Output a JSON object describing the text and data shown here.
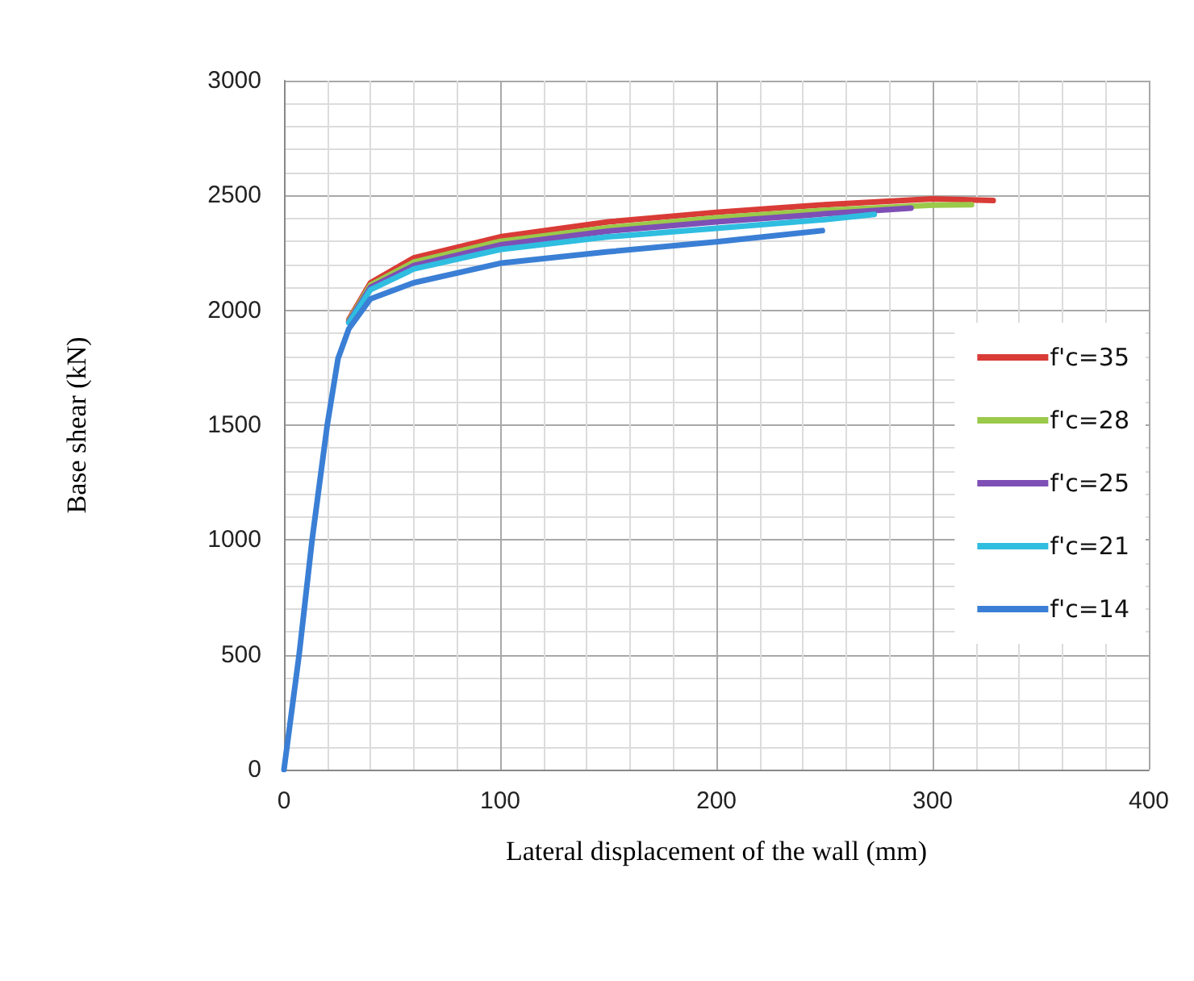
{
  "chart_data": {
    "type": "line",
    "xlabel": "Lateral displacement of the wall (mm)",
    "ylabel": "Base shear (kN)",
    "xlim": [
      0,
      400
    ],
    "ylim": [
      0,
      3000
    ],
    "xticks": [
      0,
      {
        "value": 20,
        "label": null
      },
      {
        "value": 40,
        "label": null
      },
      {
        "value": 60,
        "label": null
      },
      {
        "value": 80,
        "label": null
      },
      100,
      {
        "value": 120,
        "label": null
      },
      {
        "value": 140,
        "label": null
      },
      {
        "value": 160,
        "label": null
      },
      {
        "value": 180,
        "label": null
      },
      200,
      {
        "value": 220,
        "label": null
      },
      {
        "value": 240,
        "label": null
      },
      {
        "value": 260,
        "label": null
      },
      {
        "value": 280,
        "label": null
      },
      300,
      {
        "value": 320,
        "label": null
      },
      {
        "value": 340,
        "label": null
      },
      {
        "value": 360,
        "label": null
      },
      {
        "value": 380,
        "label": null
      },
      400
    ],
    "yticks": [
      0,
      {
        "value": 100,
        "label": null
      },
      {
        "value": 200,
        "label": null
      },
      {
        "value": 300,
        "label": null
      },
      {
        "value": 400,
        "label": null
      },
      500,
      {
        "value": 600,
        "label": null
      },
      {
        "value": 700,
        "label": null
      },
      {
        "value": 800,
        "label": null
      },
      {
        "value": 900,
        "label": null
      },
      1000,
      {
        "value": 1100,
        "label": null
      },
      {
        "value": 1200,
        "label": null
      },
      {
        "value": 1300,
        "label": null
      },
      {
        "value": 1400,
        "label": null
      },
      1500,
      {
        "value": 1600,
        "label": null
      },
      {
        "value": 1700,
        "label": null
      },
      {
        "value": 1800,
        "label": null
      },
      {
        "value": 1900,
        "label": null
      },
      2000,
      {
        "value": 2100,
        "label": null
      },
      {
        "value": 2200,
        "label": null
      },
      {
        "value": 2300,
        "label": null
      },
      {
        "value": 2400,
        "label": null
      },
      2500,
      {
        "value": 2600,
        "label": null
      },
      {
        "value": 2700,
        "label": null
      },
      {
        "value": 2800,
        "label": null
      },
      {
        "value": 2900,
        "label": null
      },
      3000
    ],
    "grid": true,
    "legend": "right",
    "marker": "none",
    "line_style": "solid",
    "series": [
      {
        "name": "f'c=35",
        "color": "#d93b36",
        "x": [
          30,
          40,
          60,
          100,
          150,
          200,
          250,
          300,
          328
        ],
        "values": [
          1960,
          2120,
          2228,
          2320,
          2385,
          2427,
          2460,
          2485,
          2478
        ]
      },
      {
        "name": "f'c=28",
        "color": "#9bc94a",
        "x": [
          30,
          40,
          60,
          100,
          150,
          200,
          250,
          300,
          318
        ],
        "values": [
          1955,
          2110,
          2210,
          2300,
          2360,
          2403,
          2435,
          2458,
          2460
        ]
      },
      {
        "name": "f'c=25",
        "color": "#7e4fb5",
        "x": [
          30,
          40,
          60,
          100,
          150,
          200,
          250,
          290
        ],
        "values": [
          1950,
          2100,
          2195,
          2285,
          2345,
          2385,
          2420,
          2445
        ]
      },
      {
        "name": "f'c=21",
        "color": "#2fbde0",
        "x": [
          30,
          40,
          60,
          100,
          150,
          200,
          250,
          273
        ],
        "values": [
          1945,
          2090,
          2180,
          2265,
          2320,
          2357,
          2395,
          2418
        ]
      },
      {
        "name": "f'c=14",
        "color": "#3a7fd5",
        "x": [
          0,
          7,
          13,
          20,
          25,
          30,
          40,
          60,
          100,
          150,
          200,
          249
        ],
        "values": [
          0,
          500,
          1000,
          1500,
          1790,
          1920,
          2050,
          2120,
          2205,
          2255,
          2298,
          2347
        ]
      }
    ]
  }
}
